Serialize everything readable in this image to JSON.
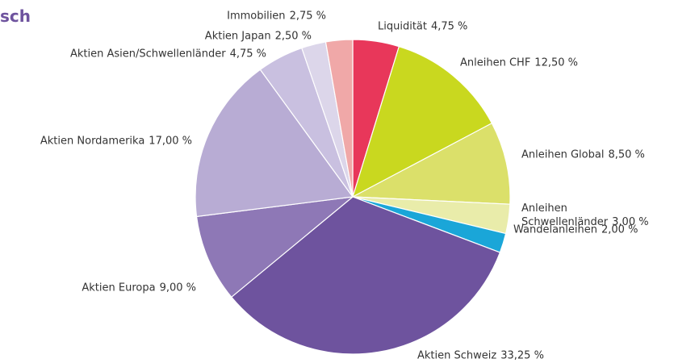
{
  "chart_data": {
    "type": "pie",
    "title": "sch",
    "categories": [
      "Liquidität",
      "Anleihen CHF",
      "Anleihen Global",
      "Anleihen Schwellenländer",
      "Wandelanleihen",
      "Aktien Schweiz",
      "Aktien Europa",
      "Aktien Nordamerika",
      "Aktien Asien/Schwellenländer",
      "Aktien Japan",
      "Immobilien"
    ],
    "values": [
      4.75,
      12.5,
      8.5,
      3.0,
      2.0,
      33.25,
      9.0,
      17.0,
      4.75,
      2.5,
      2.75
    ],
    "value_labels": [
      "4,75 %",
      "12,50 %",
      "8,50 %",
      "3,00 %",
      "2,00 %",
      "33,25 %",
      "9,00 %",
      "17,00 %",
      "4,75 %",
      "2,50 %",
      "2,75 %"
    ],
    "colors": [
      "#e8375a",
      "#c9d81f",
      "#dbe06a",
      "#e9ecaa",
      "#1aa6d8",
      "#6e539e",
      "#8e78b6",
      "#b8acd4",
      "#c9c0e0",
      "#dcd6ea",
      "#f0a8a8"
    ]
  }
}
